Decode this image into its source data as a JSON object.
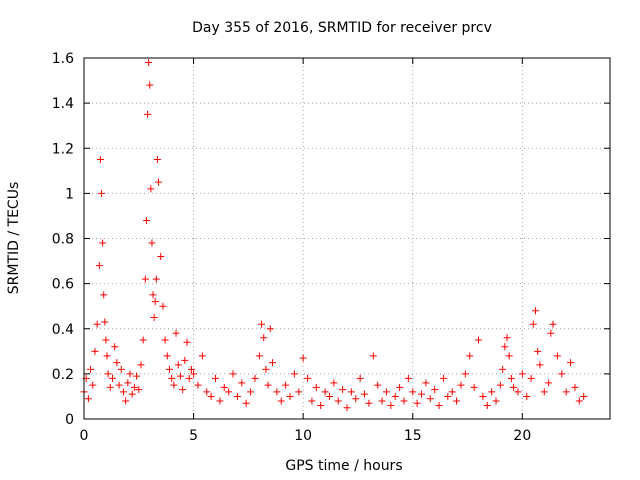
{
  "chart_data": {
    "type": "scatter",
    "title": "Day 355 of 2016, SRMTID for receiver prcv",
    "xlabel": "GPS time / hours",
    "ylabel": "SRMTID / TECUs",
    "xlim": [
      0,
      24
    ],
    "ylim": [
      0,
      1.6
    ],
    "xticks": [
      0,
      5,
      10,
      15,
      20
    ],
    "yticks": [
      0,
      0.2,
      0.4,
      0.6,
      0.8,
      1,
      1.2,
      1.4,
      1.6
    ],
    "xtick_labels": [
      "0",
      "5",
      "10",
      "15",
      "20"
    ],
    "ytick_labels": [
      "0",
      "0.2",
      "0.4",
      "0.6",
      "0.8",
      "1",
      "1.2",
      "1.4",
      "1.6"
    ],
    "grid": true,
    "marker": "plus",
    "color": "#ff0000",
    "series": [
      {
        "name": "SRMTID",
        "x": [
          0.0,
          0.1,
          0.2,
          0.3,
          0.4,
          0.5,
          0.6,
          0.7,
          0.75,
          0.8,
          0.85,
          0.9,
          0.95,
          1.0,
          1.05,
          1.1,
          1.2,
          1.3,
          1.4,
          1.5,
          1.6,
          1.7,
          1.8,
          1.9,
          2.0,
          2.1,
          2.2,
          2.3,
          2.4,
          2.5,
          2.6,
          2.7,
          2.8,
          2.85,
          2.9,
          2.95,
          3.0,
          3.05,
          3.1,
          3.15,
          3.2,
          3.25,
          3.3,
          3.35,
          3.4,
          3.5,
          3.6,
          3.7,
          3.8,
          3.9,
          4.0,
          4.1,
          4.2,
          4.3,
          4.4,
          4.5,
          4.6,
          4.7,
          4.8,
          4.9,
          5.0,
          5.2,
          5.4,
          5.6,
          5.8,
          6.0,
          6.2,
          6.4,
          6.6,
          6.8,
          7.0,
          7.2,
          7.4,
          7.6,
          7.8,
          8.0,
          8.1,
          8.2,
          8.3,
          8.4,
          8.5,
          8.6,
          8.8,
          9.0,
          9.2,
          9.4,
          9.6,
          9.8,
          10.0,
          10.2,
          10.4,
          10.6,
          10.8,
          11.0,
          11.2,
          11.4,
          11.6,
          11.8,
          12.0,
          12.2,
          12.4,
          12.6,
          12.8,
          13.0,
          13.2,
          13.4,
          13.6,
          13.8,
          14.0,
          14.2,
          14.4,
          14.6,
          14.8,
          15.0,
          15.2,
          15.4,
          15.6,
          15.8,
          16.0,
          16.2,
          16.4,
          16.6,
          16.8,
          17.0,
          17.2,
          17.4,
          17.6,
          17.8,
          18.0,
          18.2,
          18.4,
          18.6,
          18.8,
          19.0,
          19.1,
          19.2,
          19.3,
          19.4,
          19.5,
          19.6,
          19.8,
          20.0,
          20.2,
          20.4,
          20.5,
          20.6,
          20.7,
          20.8,
          21.0,
          21.2,
          21.3,
          21.4,
          21.6,
          21.8,
          22.0,
          22.2,
          22.4,
          22.6,
          22.8
        ],
        "y": [
          0.12,
          0.18,
          0.09,
          0.22,
          0.15,
          0.3,
          0.42,
          0.68,
          1.15,
          1.0,
          0.78,
          0.55,
          0.43,
          0.35,
          0.28,
          0.2,
          0.14,
          0.18,
          0.32,
          0.25,
          0.15,
          0.22,
          0.12,
          0.08,
          0.16,
          0.2,
          0.11,
          0.14,
          0.19,
          0.13,
          0.24,
          0.35,
          0.62,
          0.88,
          1.35,
          1.58,
          1.48,
          1.02,
          0.78,
          0.55,
          0.45,
          0.52,
          0.62,
          1.15,
          1.05,
          0.72,
          0.5,
          0.35,
          0.28,
          0.22,
          0.18,
          0.15,
          0.38,
          0.24,
          0.19,
          0.13,
          0.26,
          0.34,
          0.18,
          0.22,
          0.2,
          0.15,
          0.28,
          0.12,
          0.1,
          0.18,
          0.08,
          0.14,
          0.12,
          0.2,
          0.1,
          0.16,
          0.07,
          0.12,
          0.18,
          0.28,
          0.42,
          0.36,
          0.22,
          0.15,
          0.4,
          0.25,
          0.12,
          0.08,
          0.15,
          0.1,
          0.2,
          0.12,
          0.27,
          0.18,
          0.08,
          0.14,
          0.06,
          0.12,
          0.1,
          0.16,
          0.08,
          0.13,
          0.05,
          0.12,
          0.09,
          0.18,
          0.11,
          0.07,
          0.28,
          0.15,
          0.08,
          0.12,
          0.06,
          0.1,
          0.14,
          0.08,
          0.18,
          0.12,
          0.07,
          0.11,
          0.16,
          0.09,
          0.13,
          0.06,
          0.18,
          0.1,
          0.12,
          0.08,
          0.15,
          0.2,
          0.28,
          0.14,
          0.35,
          0.1,
          0.06,
          0.12,
          0.08,
          0.15,
          0.22,
          0.32,
          0.36,
          0.28,
          0.18,
          0.14,
          0.12,
          0.2,
          0.1,
          0.18,
          0.42,
          0.48,
          0.3,
          0.24,
          0.12,
          0.16,
          0.38,
          0.42,
          0.28,
          0.2,
          0.12,
          0.25,
          0.14,
          0.08,
          0.1
        ]
      }
    ]
  }
}
